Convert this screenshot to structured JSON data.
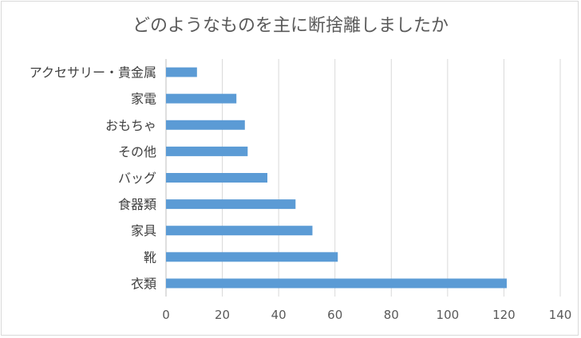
{
  "chart_data": {
    "type": "bar",
    "orientation": "horizontal",
    "title": "どのようなものを主に断捨離しましたか",
    "categories": [
      "アクセサリー・貴金属",
      "家電",
      "おもちゃ",
      "その他",
      "バッグ",
      "食器類",
      "家具",
      "靴",
      "衣類"
    ],
    "values": [
      11,
      25,
      28,
      29,
      36,
      46,
      52,
      61,
      121
    ],
    "xlim": [
      0,
      140
    ],
    "xticks": [
      0,
      20,
      40,
      60,
      80,
      100,
      120,
      140
    ],
    "grid": true,
    "legend": "none",
    "bar_color": "#5b9bd5"
  }
}
